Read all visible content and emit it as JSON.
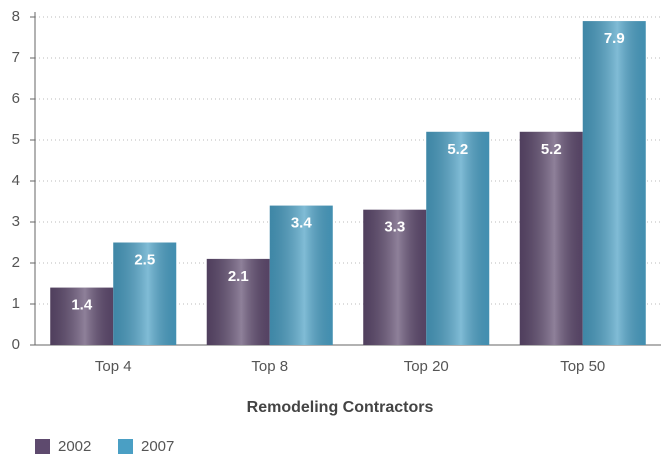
{
  "chart_data": {
    "type": "bar",
    "x_label": "Remodeling Contractors",
    "categories": [
      "Top 4",
      "Top 8",
      "Top 20",
      "Top 50"
    ],
    "series": [
      {
        "name": "2002",
        "color": "#5e4a6e",
        "values": [
          1.4,
          2.1,
          3.3,
          5.2
        ]
      },
      {
        "name": "2007",
        "color": "#4a9fc4",
        "values": [
          2.5,
          3.4,
          5.2,
          7.9
        ]
      }
    ],
    "ylim": [
      0,
      8
    ],
    "yticks": [
      0,
      1,
      2,
      3,
      4,
      5,
      6,
      7,
      8
    ],
    "grid": true,
    "legend": "bottom-left"
  }
}
